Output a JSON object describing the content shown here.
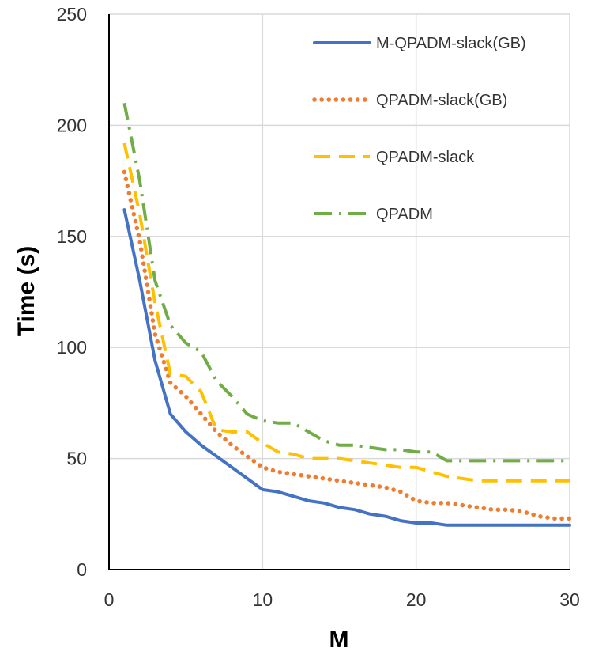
{
  "chart_data": {
    "type": "line",
    "title": "",
    "xlabel": "M",
    "ylabel": "Time (s)",
    "xlim": [
      0,
      30
    ],
    "ylim": [
      0,
      250
    ],
    "xticks": [
      0,
      10,
      20,
      30
    ],
    "yticks": [
      0,
      50,
      100,
      150,
      200,
      250
    ],
    "grid": true,
    "legend_position": "top-right",
    "series": [
      {
        "name": "M-QPADM-slack(GB)",
        "color": "#4472C4",
        "style": "solid",
        "x": [
          1,
          2,
          3,
          4,
          5,
          6,
          7,
          8,
          9,
          10,
          11,
          12,
          13,
          14,
          15,
          16,
          17,
          18,
          19,
          20,
          21,
          22,
          23,
          24,
          25,
          26,
          27,
          28,
          29,
          30
        ],
        "y": [
          162,
          130,
          94,
          70,
          62,
          56,
          51,
          46,
          41,
          36,
          35,
          33,
          31,
          30,
          28,
          27,
          25,
          24,
          22,
          21,
          21,
          20,
          20,
          20,
          20,
          20,
          20,
          20,
          20,
          20
        ]
      },
      {
        "name": "QPADM-slack(GB)",
        "color": "#ED7D31",
        "style": "dotted",
        "x": [
          1,
          2,
          3,
          4,
          5,
          6,
          7,
          8,
          9,
          10,
          11,
          12,
          13,
          14,
          15,
          16,
          17,
          18,
          19,
          20,
          21,
          22,
          23,
          24,
          25,
          26,
          27,
          28,
          29,
          30
        ],
        "y": [
          179,
          148,
          106,
          84,
          78,
          70,
          62,
          56,
          51,
          46,
          44,
          43,
          42,
          41,
          40,
          39,
          38,
          37,
          35,
          31,
          30,
          30,
          29,
          28,
          27,
          27,
          26,
          24,
          23,
          23
        ]
      },
      {
        "name": "QPADM-slack",
        "color": "#FFC000",
        "style": "dashed",
        "x": [
          1,
          2,
          3,
          4,
          5,
          6,
          7,
          8,
          9,
          10,
          11,
          12,
          13,
          14,
          15,
          16,
          17,
          18,
          19,
          20,
          21,
          22,
          23,
          24,
          25,
          26,
          27,
          28,
          29,
          30
        ],
        "y": [
          192,
          160,
          120,
          88,
          87,
          80,
          63,
          62,
          62,
          57,
          53,
          52,
          50,
          50,
          50,
          49,
          48,
          47,
          46,
          46,
          44,
          42,
          41,
          40,
          40,
          40,
          40,
          40,
          40,
          40
        ]
      },
      {
        "name": "QPADM",
        "color": "#70AD47",
        "style": "dash-dot",
        "x": [
          1,
          2,
          3,
          4,
          5,
          6,
          7,
          8,
          9,
          10,
          11,
          12,
          13,
          14,
          15,
          16,
          17,
          18,
          19,
          20,
          21,
          22,
          23,
          24,
          25,
          26,
          27,
          28,
          29,
          30
        ],
        "y": [
          210,
          175,
          130,
          110,
          102,
          98,
          85,
          78,
          70,
          67,
          66,
          66,
          62,
          58,
          56,
          56,
          55,
          54,
          54,
          53,
          53,
          49,
          49,
          49,
          49,
          49,
          49,
          49,
          49,
          49
        ]
      }
    ]
  }
}
